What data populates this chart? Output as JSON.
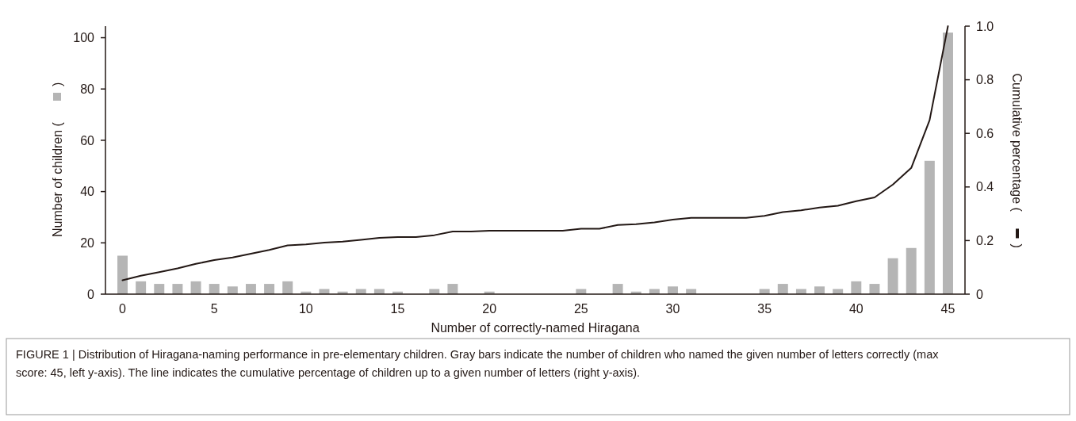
{
  "chart_data": {
    "type": "bar",
    "xlabel": "Number of correctly-named Hiragana",
    "ylabel": "Number of children ( )",
    "y2label": "Cumulative percentage ( )",
    "categories": [
      "0",
      null,
      null,
      null,
      null,
      "5",
      null,
      null,
      null,
      null,
      "10",
      null,
      null,
      null,
      null,
      "15",
      null,
      null,
      null,
      null,
      "20",
      null,
      null,
      null,
      null,
      "25",
      null,
      null,
      null,
      null,
      "30",
      null,
      null,
      null,
      null,
      "35",
      null,
      null,
      null,
      null,
      "40",
      null,
      null,
      null,
      null,
      "45"
    ],
    "ylim": [
      0,
      104.5
    ],
    "yticks": [
      0,
      20,
      40,
      60,
      80,
      100
    ],
    "y2lim": [
      0,
      1.0
    ],
    "y2ticks": [
      0,
      {
        "value": 0.2,
        "label": "0.2"
      },
      {
        "value": 0.4,
        "label": "0.4"
      },
      {
        "value": 0.6,
        "label": "0.6"
      },
      {
        "value": 0.8,
        "label": "0.8"
      },
      {
        "value": 1.0,
        "label": "1.0"
      }
    ],
    "series": [
      {
        "color": "#b5b5b5",
        "values": [
          15,
          5,
          4,
          4,
          5,
          4,
          3,
          4,
          4,
          5,
          1,
          2,
          1,
          2,
          2,
          1,
          0,
          2,
          4,
          0,
          1,
          0,
          0,
          0,
          0,
          2,
          0,
          4,
          1,
          2,
          3,
          2,
          0,
          0,
          0,
          2,
          4,
          2,
          3,
          2,
          5,
          4,
          14,
          18,
          52,
          102
        ]
      },
      {
        "type": "line",
        "axis": "y2",
        "color": "#231815",
        "values": [
          0.052,
          0.069,
          0.082,
          0.096,
          0.113,
          0.127,
          0.137,
          0.151,
          0.165,
          0.182,
          0.186,
          0.192,
          0.196,
          0.203,
          0.21,
          0.213,
          0.213,
          0.22,
          0.234,
          0.234,
          0.237,
          0.237,
          0.237,
          0.237,
          0.237,
          0.244,
          0.244,
          0.258,
          0.261,
          0.268,
          0.278,
          0.285,
          0.285,
          0.285,
          0.285,
          0.292,
          0.306,
          0.313,
          0.323,
          0.33,
          0.347,
          0.361,
          0.409,
          0.471,
          0.649,
          1.0
        ]
      }
    ],
    "annotations": [
      "FIGURE 1 | Distribution of Hiragana-naming performance in pre-elementary children. Gray bars indicate the number of children who named the given number of letters correctly (max score: 45, left y-axis). The line indicates the cumulative percentage of children up to a given number of letters (right y-axis)."
    ]
  }
}
